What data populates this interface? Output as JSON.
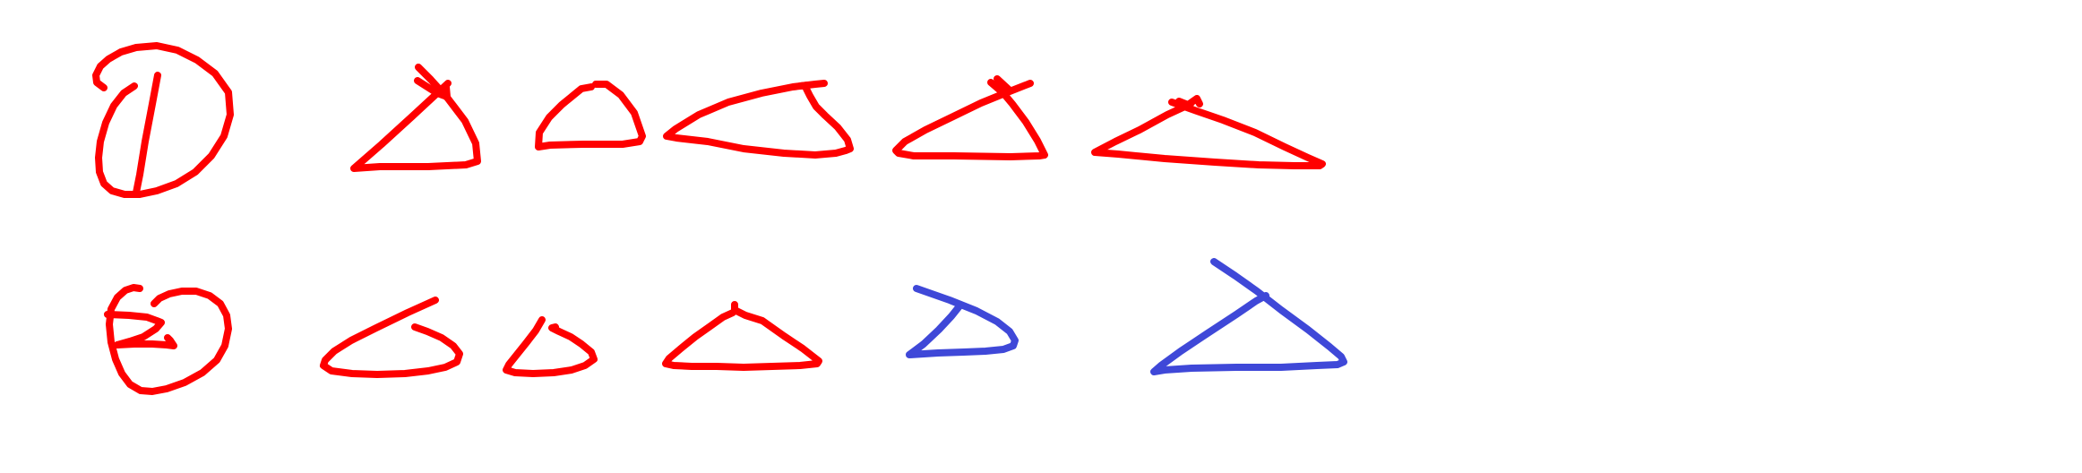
{
  "colors": {
    "background": "#ffffff",
    "red": "#ff0000",
    "blue": "#3f48d8"
  },
  "rows": [
    {
      "label_glyph": "circled-one",
      "label_color": "red",
      "shape_colors": [
        "red",
        "red",
        "red",
        "red",
        "red"
      ]
    },
    {
      "label_glyph": "circled-eight",
      "label_color": "red",
      "shape_colors": [
        "red",
        "red",
        "red",
        "blue",
        "blue"
      ]
    }
  ]
}
